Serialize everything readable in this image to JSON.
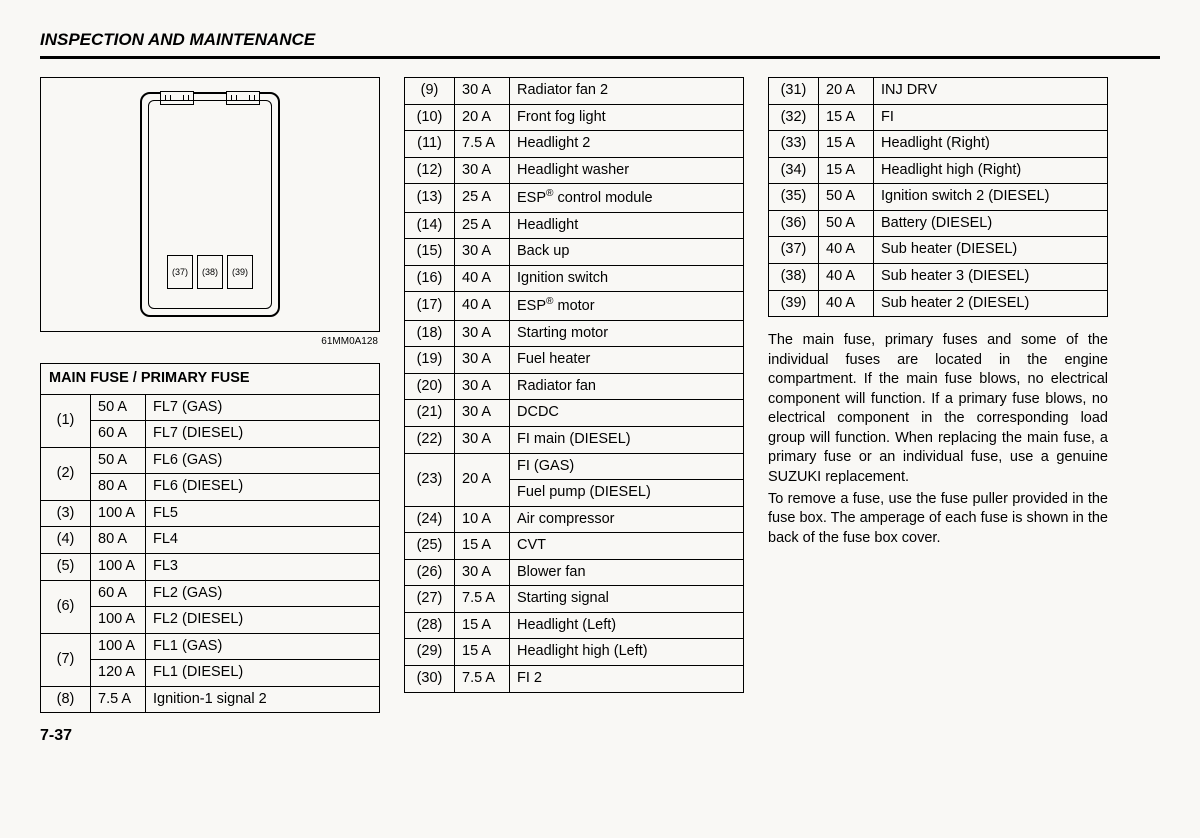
{
  "section_title": "INSPECTION AND MAINTENANCE",
  "diagram": {
    "ref": "61MM0A128",
    "slots": [
      "(37)",
      "(38)",
      "(39)"
    ]
  },
  "main_fuse": {
    "header": "MAIN FUSE / PRIMARY FUSE",
    "rows": [
      {
        "n": "(1)",
        "span": 2,
        "sub": [
          {
            "amp": "50 A",
            "desc": "FL7 (GAS)"
          },
          {
            "amp": "60 A",
            "desc": "FL7 (DIESEL)"
          }
        ]
      },
      {
        "n": "(2)",
        "span": 2,
        "sub": [
          {
            "amp": "50 A",
            "desc": "FL6 (GAS)"
          },
          {
            "amp": "80 A",
            "desc": "FL6 (DIESEL)"
          }
        ]
      },
      {
        "n": "(3)",
        "span": 1,
        "sub": [
          {
            "amp": "100 A",
            "desc": "FL5"
          }
        ]
      },
      {
        "n": "(4)",
        "span": 1,
        "sub": [
          {
            "amp": "80 A",
            "desc": "FL4"
          }
        ]
      },
      {
        "n": "(5)",
        "span": 1,
        "sub": [
          {
            "amp": "100 A",
            "desc": "FL3"
          }
        ]
      },
      {
        "n": "(6)",
        "span": 2,
        "sub": [
          {
            "amp": "60 A",
            "desc": "FL2 (GAS)"
          },
          {
            "amp": "100 A",
            "desc": "FL2 (DIESEL)"
          }
        ]
      },
      {
        "n": "(7)",
        "span": 2,
        "sub": [
          {
            "amp": "100 A",
            "desc": "FL1 (GAS)"
          },
          {
            "amp": "120 A",
            "desc": "FL1 (DIESEL)"
          }
        ]
      },
      {
        "n": "(8)",
        "span": 1,
        "sub": [
          {
            "amp": "7.5 A",
            "desc": "Ignition-1 signal 2"
          }
        ]
      }
    ]
  },
  "mid_table": {
    "rows": [
      {
        "n": "(9)",
        "span": 1,
        "sub": [
          {
            "amp": "30 A",
            "desc": "Radiator fan 2"
          }
        ]
      },
      {
        "n": "(10)",
        "span": 1,
        "sub": [
          {
            "amp": "20 A",
            "desc": "Front fog light"
          }
        ]
      },
      {
        "n": "(11)",
        "span": 1,
        "sub": [
          {
            "amp": "7.5 A",
            "desc": "Headlight 2"
          }
        ]
      },
      {
        "n": "(12)",
        "span": 1,
        "sub": [
          {
            "amp": "30 A",
            "desc": "Headlight washer"
          }
        ]
      },
      {
        "n": "(13)",
        "span": 1,
        "sub": [
          {
            "amp": "25 A",
            "desc": "ESP<sup>®</sup> control module"
          }
        ]
      },
      {
        "n": "(14)",
        "span": 1,
        "sub": [
          {
            "amp": "25 A",
            "desc": "Headlight"
          }
        ]
      },
      {
        "n": "(15)",
        "span": 1,
        "sub": [
          {
            "amp": "30 A",
            "desc": "Back up"
          }
        ]
      },
      {
        "n": "(16)",
        "span": 1,
        "sub": [
          {
            "amp": "40 A",
            "desc": "Ignition switch"
          }
        ]
      },
      {
        "n": "(17)",
        "span": 1,
        "sub": [
          {
            "amp": "40 A",
            "desc": "ESP<sup>®</sup> motor"
          }
        ]
      },
      {
        "n": "(18)",
        "span": 1,
        "sub": [
          {
            "amp": "30 A",
            "desc": "Starting motor"
          }
        ]
      },
      {
        "n": "(19)",
        "span": 1,
        "sub": [
          {
            "amp": "30 A",
            "desc": "Fuel heater"
          }
        ]
      },
      {
        "n": "(20)",
        "span": 1,
        "sub": [
          {
            "amp": "30 A",
            "desc": "Radiator fan"
          }
        ]
      },
      {
        "n": "(21)",
        "span": 1,
        "sub": [
          {
            "amp": "30 A",
            "desc": "DCDC"
          }
        ]
      },
      {
        "n": "(22)",
        "span": 1,
        "sub": [
          {
            "amp": "30 A",
            "desc": "FI main (DIESEL)"
          }
        ]
      },
      {
        "n": "(23)",
        "span": 2,
        "amp_span": 2,
        "amp": "20 A",
        "sub": [
          {
            "desc": "FI (GAS)"
          },
          {
            "desc": "Fuel pump (DIESEL)"
          }
        ]
      },
      {
        "n": "(24)",
        "span": 1,
        "sub": [
          {
            "amp": "10 A",
            "desc": "Air compressor"
          }
        ]
      },
      {
        "n": "(25)",
        "span": 1,
        "sub": [
          {
            "amp": "15 A",
            "desc": "CVT"
          }
        ]
      },
      {
        "n": "(26)",
        "span": 1,
        "sub": [
          {
            "amp": "30 A",
            "desc": "Blower fan"
          }
        ]
      },
      {
        "n": "(27)",
        "span": 1,
        "sub": [
          {
            "amp": "7.5 A",
            "desc": "Starting signal"
          }
        ]
      },
      {
        "n": "(28)",
        "span": 1,
        "sub": [
          {
            "amp": "15 A",
            "desc": "Headlight (Left)"
          }
        ]
      },
      {
        "n": "(29)",
        "span": 1,
        "sub": [
          {
            "amp": "15 A",
            "desc": "Headlight high (Left)"
          }
        ]
      },
      {
        "n": "(30)",
        "span": 1,
        "sub": [
          {
            "amp": "7.5 A",
            "desc": "FI 2"
          }
        ]
      }
    ]
  },
  "right_table": {
    "rows": [
      {
        "n": "(31)",
        "span": 1,
        "sub": [
          {
            "amp": "20 A",
            "desc": "INJ DRV"
          }
        ]
      },
      {
        "n": "(32)",
        "span": 1,
        "sub": [
          {
            "amp": "15 A",
            "desc": "FI"
          }
        ]
      },
      {
        "n": "(33)",
        "span": 1,
        "sub": [
          {
            "amp": "15 A",
            "desc": "Headlight (Right)"
          }
        ]
      },
      {
        "n": "(34)",
        "span": 1,
        "sub": [
          {
            "amp": "15 A",
            "desc": "Headlight high (Right)"
          }
        ]
      },
      {
        "n": "(35)",
        "span": 1,
        "sub": [
          {
            "amp": "50 A",
            "desc": "Ignition switch 2 (DIESEL)"
          }
        ]
      },
      {
        "n": "(36)",
        "span": 1,
        "sub": [
          {
            "amp": "50 A",
            "desc": "Battery (DIESEL)"
          }
        ]
      },
      {
        "n": "(37)",
        "span": 1,
        "sub": [
          {
            "amp": "40 A",
            "desc": "Sub heater (DIESEL)"
          }
        ]
      },
      {
        "n": "(38)",
        "span": 1,
        "sub": [
          {
            "amp": "40 A",
            "desc": "Sub heater 3 (DIESEL)"
          }
        ]
      },
      {
        "n": "(39)",
        "span": 1,
        "sub": [
          {
            "amp": "40 A",
            "desc": "Sub heater 2 (DIESEL)"
          }
        ]
      }
    ]
  },
  "prose": {
    "p1": "The main fuse, primary fuses and some of the individual fuses are located in the engine compartment. If the main fuse blows, no electrical component will function. If a primary fuse blows, no electrical component in the corresponding load group will function. When replacing the main fuse, a primary fuse or an individual fuse, use a genuine SUZUKI replacement.",
    "p2": "To remove a fuse, use the fuse puller provided in the fuse box. The amperage of each fuse is shown in the back of the fuse box cover."
  },
  "page_number": "7-37"
}
